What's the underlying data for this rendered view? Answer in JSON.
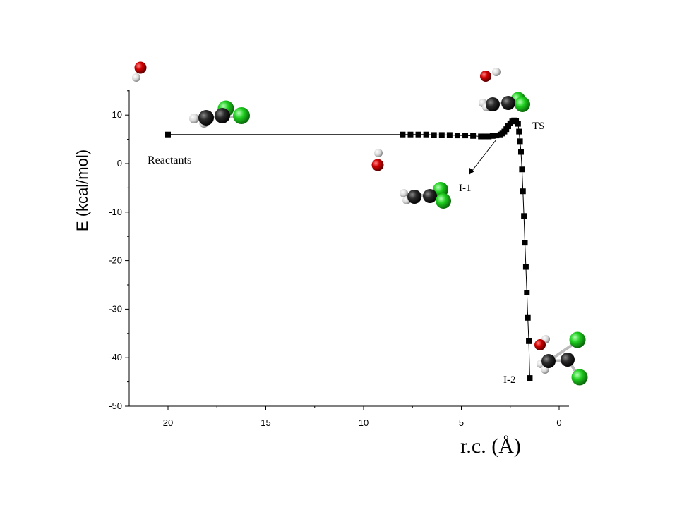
{
  "chart_data": {
    "type": "line",
    "title": "",
    "xlabel": "r.c. (Å)",
    "ylabel": "E (kcal/mol)",
    "xlim": [
      22,
      0
    ],
    "x_reversed": true,
    "ylim": [
      -50,
      15
    ],
    "x_ticks": [
      20,
      15,
      10,
      5,
      0
    ],
    "y_ticks": [
      10,
      0,
      -10,
      -20,
      -30,
      -40,
      -50
    ],
    "grid": false,
    "series": [
      {
        "x": [
          20.0,
          8.0,
          7.6,
          7.2,
          6.8,
          6.4,
          6.0,
          5.6,
          5.2,
          4.8,
          4.4,
          4.0,
          3.8,
          3.6,
          3.4,
          3.2,
          3.0,
          2.9,
          2.8,
          2.7,
          2.6,
          2.5,
          2.4,
          2.3,
          2.2,
          2.1,
          2.05,
          2.0,
          1.95,
          1.9,
          1.85,
          1.8,
          1.75,
          1.7,
          1.65,
          1.6,
          1.55,
          1.5
        ],
        "y": [
          6.0,
          6.0,
          6.0,
          6.0,
          6.0,
          5.9,
          5.9,
          5.9,
          5.8,
          5.8,
          5.7,
          5.6,
          5.6,
          5.6,
          5.7,
          5.8,
          6.0,
          6.2,
          6.6,
          7.1,
          7.7,
          8.3,
          8.7,
          8.9,
          8.8,
          8.2,
          6.6,
          4.6,
          2.4,
          -1.2,
          -5.7,
          -10.8,
          -16.3,
          -21.3,
          -26.6,
          -31.8,
          -36.6,
          -44.2
        ]
      }
    ],
    "annotations": {
      "reactants": "Reactants",
      "ts": "TS",
      "i1": "I-1",
      "i2": "I-2"
    }
  },
  "colors": {
    "oxygen": "#cc0000",
    "hydrogen": "#e8e8e8",
    "carbon": "#2a2a2a",
    "chlorine": "#22cc22"
  }
}
